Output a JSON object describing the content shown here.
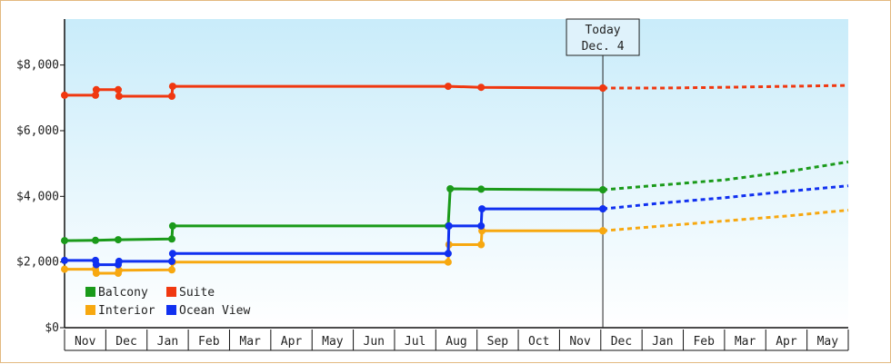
{
  "chart_data": {
    "type": "line",
    "title": "",
    "xlabel": "",
    "ylabel": "",
    "ylim": [
      0,
      9400
    ],
    "y_ticks": [
      {
        "value": 0,
        "label": "$0"
      },
      {
        "value": 2000,
        "label": "$2,000"
      },
      {
        "value": 4000,
        "label": "$4,000"
      },
      {
        "value": 6000,
        "label": "$6,000"
      },
      {
        "value": 8000,
        "label": "$8,000"
      }
    ],
    "x_month_labels": [
      "Nov",
      "Dec",
      "Jan",
      "Feb",
      "Mar",
      "Apr",
      "May",
      "Jun",
      "Jul",
      "Aug",
      "Sep",
      "Oct",
      "Nov",
      "Dec",
      "Jan",
      "Feb",
      "Mar",
      "Apr",
      "May"
    ],
    "x_range_months": [
      0,
      19
    ],
    "today": {
      "line1": "Today",
      "line2": "Dec. 4",
      "x": 13.05
    },
    "grid": false,
    "background": "gradient light blue (top) to white (bottom)",
    "legend_position": "bottom-left",
    "series": [
      {
        "name": "Balcony",
        "color": "#1a9a1a",
        "points": [
          [
            0.0,
            2650
          ],
          [
            0.75,
            2660
          ],
          [
            1.3,
            2680
          ],
          [
            2.6,
            2700
          ],
          [
            2.62,
            3100
          ],
          [
            9.3,
            3100
          ],
          [
            9.35,
            4230
          ],
          [
            10.1,
            4220
          ],
          [
            13.05,
            4200
          ]
        ],
        "forecast": [
          [
            13.05,
            4200
          ],
          [
            14.5,
            4350
          ],
          [
            16.0,
            4500
          ],
          [
            17.5,
            4750
          ],
          [
            19.0,
            5050
          ]
        ]
      },
      {
        "name": "Suite",
        "color": "#f03810",
        "points": [
          [
            0.0,
            7080
          ],
          [
            0.75,
            7080
          ],
          [
            0.77,
            7250
          ],
          [
            1.3,
            7250
          ],
          [
            1.32,
            7050
          ],
          [
            2.6,
            7050
          ],
          [
            2.62,
            7350
          ],
          [
            9.3,
            7350
          ],
          [
            10.1,
            7320
          ],
          [
            13.05,
            7300
          ]
        ],
        "forecast": [
          [
            13.05,
            7300
          ],
          [
            14.5,
            7300
          ],
          [
            16.0,
            7320
          ],
          [
            17.5,
            7350
          ],
          [
            19.0,
            7380
          ]
        ]
      },
      {
        "name": "Interior",
        "color": "#f7a810",
        "points": [
          [
            0.0,
            1780
          ],
          [
            0.75,
            1780
          ],
          [
            0.77,
            1660
          ],
          [
            1.3,
            1660
          ],
          [
            1.32,
            1750
          ],
          [
            2.6,
            1760
          ],
          [
            2.62,
            2000
          ],
          [
            9.3,
            2000
          ],
          [
            9.32,
            2530
          ],
          [
            10.1,
            2530
          ],
          [
            10.12,
            2950
          ],
          [
            13.05,
            2950
          ]
        ],
        "forecast": [
          [
            13.05,
            2950
          ],
          [
            14.5,
            3100
          ],
          [
            16.0,
            3250
          ],
          [
            17.5,
            3400
          ],
          [
            19.0,
            3580
          ]
        ]
      },
      {
        "name": "Ocean View",
        "color": "#1030f0",
        "points": [
          [
            0.0,
            2050
          ],
          [
            0.75,
            2050
          ],
          [
            0.77,
            1920
          ],
          [
            1.3,
            1920
          ],
          [
            1.32,
            2020
          ],
          [
            2.6,
            2020
          ],
          [
            2.62,
            2260
          ],
          [
            9.3,
            2260
          ],
          [
            9.32,
            3100
          ],
          [
            10.1,
            3100
          ],
          [
            10.12,
            3620
          ],
          [
            13.05,
            3620
          ]
        ],
        "forecast": [
          [
            13.05,
            3620
          ],
          [
            14.5,
            3800
          ],
          [
            16.0,
            3960
          ],
          [
            17.5,
            4150
          ],
          [
            19.0,
            4320
          ]
        ]
      }
    ]
  }
}
